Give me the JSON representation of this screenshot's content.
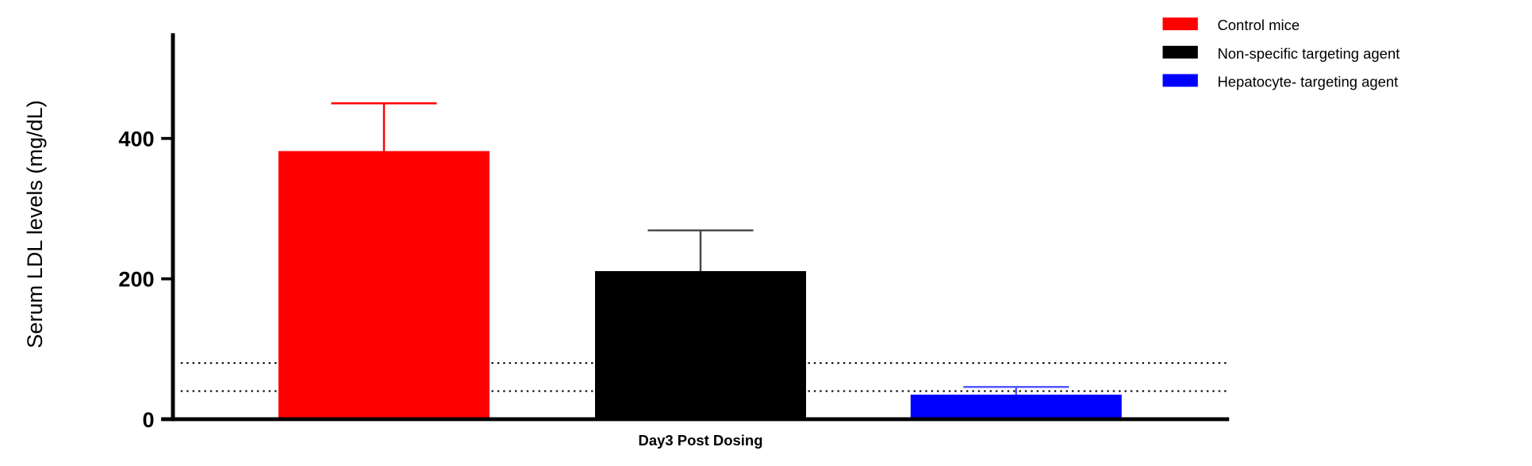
{
  "chart_data": {
    "type": "bar",
    "title": "",
    "xlabel": "",
    "ylabel": "Serum LDL levels (mg/dL)",
    "categories": [
      "Day3 Post Dosing"
    ],
    "ylim": [
      0,
      550
    ],
    "yticks": [
      0,
      200,
      400
    ],
    "grid": false,
    "legend_placement": "top-right",
    "series": [
      {
        "name": "Control mice",
        "color": "#ff0000",
        "values": [
          382
        ],
        "error_upper": [
          450
        ]
      },
      {
        "name": "Non-specific targeting agent",
        "color": "#000000",
        "values": [
          211
        ],
        "error_upper": [
          269
        ]
      },
      {
        "name": "Hepatocyte- targeting agent",
        "color": "#0000ff",
        "values": [
          35
        ],
        "error_upper": [
          46
        ]
      }
    ],
    "reference_lines": [
      {
        "y": 80,
        "style": "dotted",
        "color": "#000000"
      },
      {
        "y": 40,
        "style": "dotted",
        "color": "#000000"
      }
    ]
  }
}
